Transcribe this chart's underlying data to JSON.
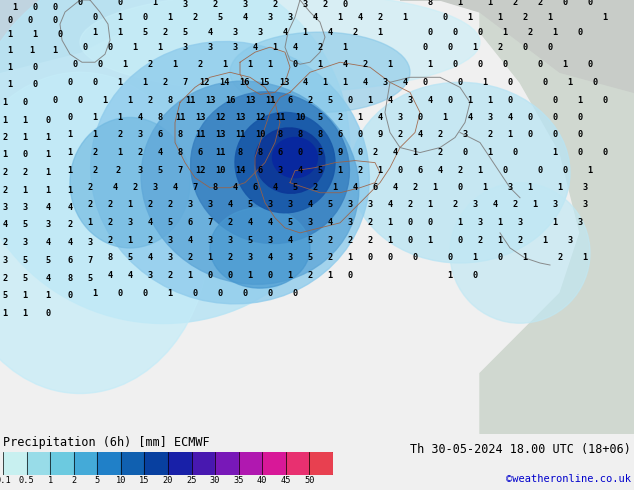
{
  "title_left": "Precipitation (6h) [mm] ECMWF",
  "title_right": "Th 30-05-2024 18.00 UTC (18+06)",
  "subtitle_right": "©weatheronline.co.uk",
  "colorbar_levels": [
    0.1,
    0.5,
    1,
    2,
    5,
    10,
    15,
    20,
    25,
    30,
    35,
    40,
    45,
    50
  ],
  "colorbar_colors": [
    "#c8f0f0",
    "#98dce8",
    "#6ccae0",
    "#44aad8",
    "#2080c8",
    "#1060b0",
    "#0840a0",
    "#1820a8",
    "#4818b0",
    "#7818b8",
    "#b018b0",
    "#d81898",
    "#e83070",
    "#e84050"
  ],
  "bg_color": "#f0f0f0",
  "font_color": "#000000",
  "label_fontsize": 7.5,
  "title_fontsize": 8.5,
  "map_colors": {
    "land_green": "#c8dc9a",
    "land_light": "#dce8b4",
    "sea_gray": "#c8c8c8",
    "sea_blue": "#b0c8d8",
    "precip_lightest": "#c8eef8",
    "precip_light": "#98d8f0",
    "precip_medium": "#60b8e8",
    "precip_blue": "#3090d0",
    "precip_darkblue": "#1060b8",
    "precip_deepblue": "#0838a8",
    "precip_navy": "#101898"
  }
}
